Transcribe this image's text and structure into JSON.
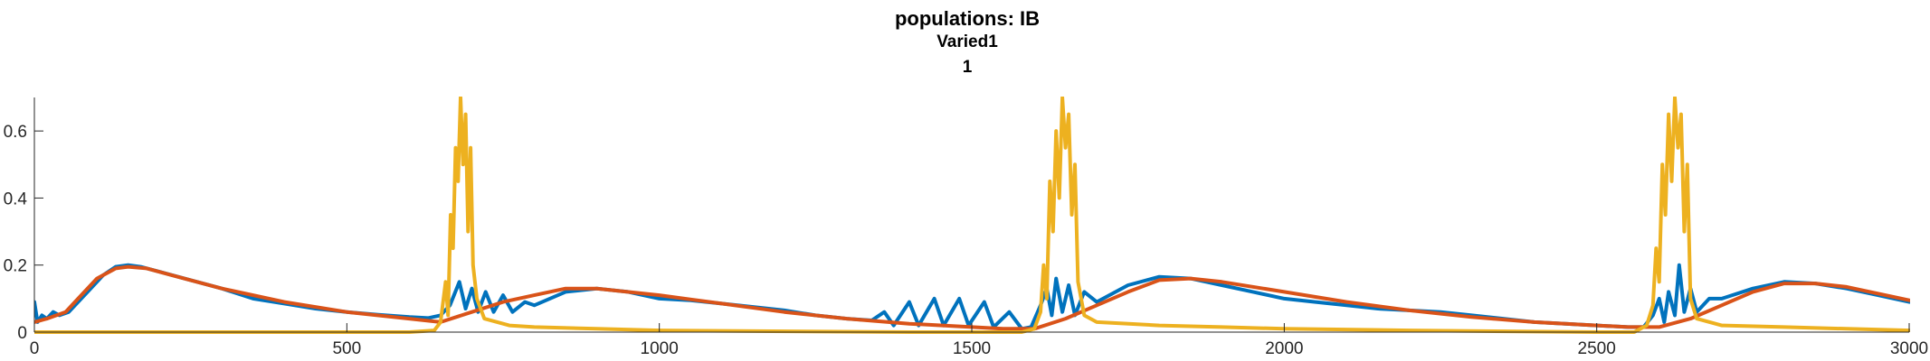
{
  "chart_data": {
    "type": "line",
    "title": "populations: IB",
    "subtitle": "Varied1",
    "subsubtitle": "1",
    "xlabel": "",
    "ylabel": "",
    "xlim": [
      0,
      3000
    ],
    "ylim": [
      0,
      0.7
    ],
    "x_ticks": [
      0,
      500,
      1000,
      1500,
      2000,
      2500,
      3000
    ],
    "x_tick_labels": [
      "0",
      "500",
      "1000",
      "1500",
      "2000",
      "2500",
      "3000"
    ],
    "y_ticks": [
      0,
      0.2,
      0.4,
      0.6
    ],
    "y_tick_labels": [
      "0",
      "0.2",
      "0.4",
      "0.6"
    ],
    "grid": false,
    "legend": "none",
    "series": [
      {
        "color": "#0072BD",
        "points": [
          [
            0,
            0.09
          ],
          [
            5,
            0.03
          ],
          [
            12,
            0.05
          ],
          [
            20,
            0.04
          ],
          [
            30,
            0.06
          ],
          [
            40,
            0.05
          ],
          [
            55,
            0.06
          ],
          [
            70,
            0.09
          ],
          [
            90,
            0.13
          ],
          [
            110,
            0.17
          ],
          [
            130,
            0.195
          ],
          [
            150,
            0.2
          ],
          [
            170,
            0.195
          ],
          [
            200,
            0.18
          ],
          [
            250,
            0.155
          ],
          [
            300,
            0.13
          ],
          [
            350,
            0.1
          ],
          [
            400,
            0.085
          ],
          [
            450,
            0.07
          ],
          [
            500,
            0.06
          ],
          [
            550,
            0.052
          ],
          [
            600,
            0.045
          ],
          [
            630,
            0.042
          ],
          [
            650,
            0.05
          ],
          [
            665,
            0.08
          ],
          [
            680,
            0.15
          ],
          [
            690,
            0.07
          ],
          [
            700,
            0.13
          ],
          [
            710,
            0.06
          ],
          [
            722,
            0.12
          ],
          [
            735,
            0.06
          ],
          [
            750,
            0.11
          ],
          [
            765,
            0.06
          ],
          [
            785,
            0.09
          ],
          [
            800,
            0.08
          ],
          [
            850,
            0.12
          ],
          [
            900,
            0.13
          ],
          [
            950,
            0.12
          ],
          [
            1000,
            0.1
          ],
          [
            1050,
            0.095
          ],
          [
            1100,
            0.085
          ],
          [
            1150,
            0.075
          ],
          [
            1200,
            0.065
          ],
          [
            1250,
            0.05
          ],
          [
            1300,
            0.04
          ],
          [
            1340,
            0.035
          ],
          [
            1360,
            0.06
          ],
          [
            1375,
            0.02
          ],
          [
            1400,
            0.09
          ],
          [
            1415,
            0.02
          ],
          [
            1440,
            0.1
          ],
          [
            1455,
            0.02
          ],
          [
            1480,
            0.1
          ],
          [
            1495,
            0.02
          ],
          [
            1520,
            0.09
          ],
          [
            1535,
            0.015
          ],
          [
            1560,
            0.06
          ],
          [
            1580,
            0.01
          ],
          [
            1595,
            0.015
          ],
          [
            1610,
            0.08
          ],
          [
            1620,
            0.13
          ],
          [
            1628,
            0.05
          ],
          [
            1635,
            0.16
          ],
          [
            1645,
            0.06
          ],
          [
            1655,
            0.14
          ],
          [
            1665,
            0.05
          ],
          [
            1680,
            0.12
          ],
          [
            1700,
            0.09
          ],
          [
            1750,
            0.14
          ],
          [
            1800,
            0.165
          ],
          [
            1850,
            0.16
          ],
          [
            1900,
            0.14
          ],
          [
            1950,
            0.12
          ],
          [
            2000,
            0.1
          ],
          [
            2050,
            0.09
          ],
          [
            2100,
            0.08
          ],
          [
            2150,
            0.07
          ],
          [
            2200,
            0.065
          ],
          [
            2250,
            0.06
          ],
          [
            2300,
            0.05
          ],
          [
            2350,
            0.04
          ],
          [
            2400,
            0.03
          ],
          [
            2450,
            0.025
          ],
          [
            2500,
            0.02
          ],
          [
            2550,
            0.015
          ],
          [
            2575,
            0.015
          ],
          [
            2590,
            0.05
          ],
          [
            2600,
            0.1
          ],
          [
            2608,
            0.03
          ],
          [
            2615,
            0.12
          ],
          [
            2625,
            0.05
          ],
          [
            2632,
            0.2
          ],
          [
            2640,
            0.06
          ],
          [
            2650,
            0.13
          ],
          [
            2660,
            0.06
          ],
          [
            2680,
            0.1
          ],
          [
            2700,
            0.1
          ],
          [
            2750,
            0.13
          ],
          [
            2800,
            0.15
          ],
          [
            2850,
            0.145
          ],
          [
            2900,
            0.13
          ],
          [
            2950,
            0.11
          ],
          [
            3000,
            0.09
          ]
        ]
      },
      {
        "color": "#D95319",
        "points": [
          [
            0,
            0.03
          ],
          [
            20,
            0.04
          ],
          [
            50,
            0.06
          ],
          [
            70,
            0.1
          ],
          [
            100,
            0.16
          ],
          [
            130,
            0.19
          ],
          [
            150,
            0.195
          ],
          [
            180,
            0.19
          ],
          [
            220,
            0.17
          ],
          [
            300,
            0.13
          ],
          [
            400,
            0.09
          ],
          [
            500,
            0.06
          ],
          [
            600,
            0.04
          ],
          [
            650,
            0.03
          ],
          [
            700,
            0.06
          ],
          [
            750,
            0.09
          ],
          [
            800,
            0.11
          ],
          [
            850,
            0.13
          ],
          [
            900,
            0.13
          ],
          [
            1000,
            0.11
          ],
          [
            1100,
            0.085
          ],
          [
            1200,
            0.06
          ],
          [
            1300,
            0.04
          ],
          [
            1400,
            0.025
          ],
          [
            1500,
            0.015
          ],
          [
            1550,
            0.01
          ],
          [
            1600,
            0.01
          ],
          [
            1650,
            0.04
          ],
          [
            1700,
            0.08
          ],
          [
            1750,
            0.12
          ],
          [
            1800,
            0.155
          ],
          [
            1850,
            0.16
          ],
          [
            1900,
            0.15
          ],
          [
            2000,
            0.12
          ],
          [
            2100,
            0.09
          ],
          [
            2200,
            0.065
          ],
          [
            2300,
            0.045
          ],
          [
            2400,
            0.03
          ],
          [
            2500,
            0.02
          ],
          [
            2550,
            0.015
          ],
          [
            2600,
            0.015
          ],
          [
            2650,
            0.04
          ],
          [
            2700,
            0.08
          ],
          [
            2750,
            0.12
          ],
          [
            2800,
            0.145
          ],
          [
            2850,
            0.145
          ],
          [
            2900,
            0.135
          ],
          [
            2950,
            0.115
          ],
          [
            3000,
            0.095
          ]
        ]
      },
      {
        "color": "#EDB120",
        "points": [
          [
            0,
            0.0
          ],
          [
            600,
            0.0
          ],
          [
            640,
            0.005
          ],
          [
            650,
            0.03
          ],
          [
            658,
            0.15
          ],
          [
            662,
            0.05
          ],
          [
            666,
            0.35
          ],
          [
            670,
            0.25
          ],
          [
            674,
            0.55
          ],
          [
            678,
            0.45
          ],
          [
            682,
            0.7
          ],
          [
            686,
            0.5
          ],
          [
            690,
            0.65
          ],
          [
            694,
            0.3
          ],
          [
            698,
            0.55
          ],
          [
            702,
            0.2
          ],
          [
            708,
            0.1
          ],
          [
            720,
            0.04
          ],
          [
            760,
            0.02
          ],
          [
            800,
            0.015
          ],
          [
            900,
            0.01
          ],
          [
            1000,
            0.005
          ],
          [
            1400,
            0.0
          ],
          [
            1580,
            0.0
          ],
          [
            1600,
            0.01
          ],
          [
            1610,
            0.06
          ],
          [
            1615,
            0.2
          ],
          [
            1620,
            0.1
          ],
          [
            1625,
            0.45
          ],
          [
            1630,
            0.3
          ],
          [
            1635,
            0.6
          ],
          [
            1640,
            0.4
          ],
          [
            1645,
            0.7
          ],
          [
            1650,
            0.55
          ],
          [
            1655,
            0.65
          ],
          [
            1660,
            0.35
          ],
          [
            1665,
            0.5
          ],
          [
            1670,
            0.15
          ],
          [
            1680,
            0.05
          ],
          [
            1700,
            0.03
          ],
          [
            1800,
            0.02
          ],
          [
            1900,
            0.015
          ],
          [
            2000,
            0.01
          ],
          [
            2200,
            0.005
          ],
          [
            2500,
            0.0
          ],
          [
            2560,
            0.0
          ],
          [
            2580,
            0.02
          ],
          [
            2590,
            0.08
          ],
          [
            2595,
            0.25
          ],
          [
            2600,
            0.15
          ],
          [
            2605,
            0.5
          ],
          [
            2610,
            0.35
          ],
          [
            2615,
            0.65
          ],
          [
            2620,
            0.45
          ],
          [
            2625,
            0.7
          ],
          [
            2630,
            0.55
          ],
          [
            2635,
            0.65
          ],
          [
            2640,
            0.3
          ],
          [
            2645,
            0.5
          ],
          [
            2650,
            0.1
          ],
          [
            2660,
            0.04
          ],
          [
            2700,
            0.02
          ],
          [
            2800,
            0.015
          ],
          [
            2900,
            0.01
          ],
          [
            3000,
            0.005
          ]
        ]
      }
    ]
  }
}
